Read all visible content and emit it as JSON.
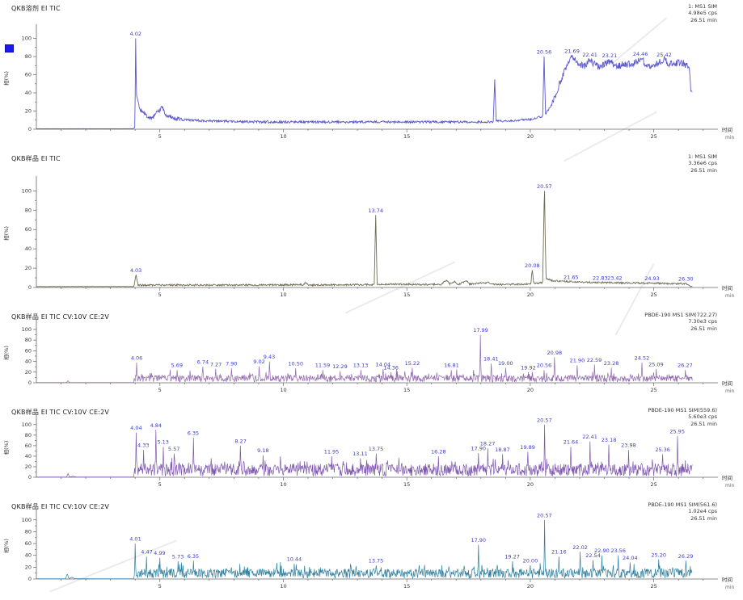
{
  "app": {
    "description_note": "Five stacked GC/MS chromatogram (TIC) traces"
  },
  "colors": {
    "peak_label": "#3c3ccd",
    "axis_line": "#666666",
    "tick_text": "#333333",
    "selection_marker": "#1a1aee",
    "trace_p1": "#5a58cb",
    "trace_p2": "#6e6e54",
    "trace_p3": "#9168ae",
    "trace_p4": "#7e57ad",
    "trace_p5": "#2f7f9d"
  },
  "axis": {
    "x_title": "时间",
    "x_unit": "min",
    "y_title": "相(%)",
    "x_ticks": [
      5,
      10,
      15,
      20,
      25
    ],
    "y_ticks": [
      0,
      20,
      40,
      60,
      80,
      100
    ]
  },
  "chart_data": [
    {
      "type": "line",
      "title": "QKB溶剂 EI TIC",
      "info": [
        "1: MS1 SIM",
        "4.98e5 cps",
        "26.51 min"
      ],
      "xlabel": "时间 (min)",
      "ylabel": "相(%)",
      "xlim": [
        0,
        27.5
      ],
      "ylim": [
        0,
        110
      ],
      "x_ticks": [
        5,
        10,
        15,
        20,
        25
      ],
      "y_ticks": [
        0,
        20,
        40,
        60,
        80,
        100
      ],
      "line_color": "#5a58cb",
      "labeled_peaks": [
        {
          "label": "4.02",
          "t": 4.02,
          "h": 100
        },
        {
          "label": "20.56",
          "t": 20.56,
          "h": 80
        },
        {
          "label": "21.69",
          "t": 21.69,
          "h": 81
        },
        {
          "label": "22.41",
          "t": 22.41,
          "h": 77
        },
        {
          "label": "23.21",
          "t": 23.21,
          "h": 76
        },
        {
          "label": "24.46",
          "t": 24.46,
          "h": 78
        },
        {
          "label": "25.42",
          "t": 25.42,
          "h": 77
        }
      ],
      "baseline": [
        [
          0,
          0.5
        ],
        [
          3.9,
          0.5
        ],
        [
          3.99,
          2
        ],
        [
          4.02,
          100
        ],
        [
          4.05,
          38
        ],
        [
          4.2,
          22
        ],
        [
          4.45,
          14
        ],
        [
          4.7,
          13
        ],
        [
          4.95,
          20
        ],
        [
          5.1,
          25
        ],
        [
          5.25,
          16
        ],
        [
          5.6,
          12
        ],
        [
          6.2,
          10
        ],
        [
          7,
          9
        ],
        [
          8,
          8.5
        ],
        [
          9,
          8
        ],
        [
          11,
          8
        ],
        [
          13,
          8
        ],
        [
          15,
          8
        ],
        [
          17,
          8
        ],
        [
          18.5,
          8
        ],
        [
          18.56,
          55
        ],
        [
          18.62,
          9
        ],
        [
          19.2,
          9
        ],
        [
          19.6,
          10
        ],
        [
          20.0,
          11
        ],
        [
          20.3,
          13
        ],
        [
          20.5,
          14
        ],
        [
          20.56,
          80
        ],
        [
          20.62,
          17
        ],
        [
          20.9,
          28
        ],
        [
          21.2,
          52
        ],
        [
          21.5,
          70
        ],
        [
          21.69,
          80
        ],
        [
          21.9,
          73
        ],
        [
          22.2,
          70
        ],
        [
          22.41,
          76
        ],
        [
          22.7,
          69
        ],
        [
          23.0,
          72
        ],
        [
          23.21,
          75
        ],
        [
          23.5,
          70
        ],
        [
          23.8,
          71
        ],
        [
          24.1,
          72
        ],
        [
          24.46,
          77
        ],
        [
          24.8,
          70
        ],
        [
          25.1,
          72
        ],
        [
          25.42,
          76
        ],
        [
          25.7,
          71
        ],
        [
          26.0,
          74
        ],
        [
          26.2,
          73
        ],
        [
          26.35,
          70
        ],
        [
          26.45,
          66
        ],
        [
          26.5,
          42
        ]
      ],
      "noise_regions": [
        [
          0,
          0.15
        ],
        [
          4.15,
          2.5
        ],
        [
          6,
          1.3
        ],
        [
          17.4,
          1.1
        ],
        [
          20.9,
          4
        ],
        [
          26.4,
          1.5
        ]
      ],
      "trace_start": 3.95
    },
    {
      "type": "line",
      "title": "QKB样品 EI TIC",
      "info": [
        "1: MS1 SIM",
        "3.36e6 cps",
        "26.51 min"
      ],
      "xlabel": "时间 (min)",
      "ylabel": "相(%)",
      "xlim": [
        0,
        27.5
      ],
      "ylim": [
        0,
        110
      ],
      "x_ticks": [
        5,
        10,
        15,
        20,
        25
      ],
      "y_ticks": [
        0,
        20,
        40,
        60,
        80,
        100
      ],
      "line_color": "#6e6e54",
      "labeled_peaks": [
        {
          "label": "4.03",
          "t": 4.03,
          "h": 13
        },
        {
          "label": "13.74",
          "t": 13.74,
          "h": 75
        },
        {
          "label": "20.08",
          "t": 20.08,
          "h": 18
        },
        {
          "label": "20.57",
          "t": 20.57,
          "h": 100
        },
        {
          "label": "21.65",
          "t": 21.65,
          "h": 6
        },
        {
          "label": "22.83",
          "t": 22.83,
          "h": 5
        },
        {
          "label": "23.42",
          "t": 23.42,
          "h": 5
        },
        {
          "label": "24.93",
          "t": 24.93,
          "h": 4.5
        },
        {
          "label": "26.30",
          "t": 26.3,
          "h": 4
        }
      ],
      "baseline": [
        [
          0,
          1
        ],
        [
          3.95,
          1
        ],
        [
          4.03,
          13
        ],
        [
          4.12,
          2.5
        ],
        [
          5,
          2.5
        ],
        [
          8,
          2.5
        ],
        [
          10.8,
          2.8
        ],
        [
          10.9,
          5
        ],
        [
          11,
          2.5
        ],
        [
          13.68,
          3
        ],
        [
          13.74,
          75
        ],
        [
          13.8,
          3.5
        ],
        [
          16.4,
          3
        ],
        [
          16.6,
          8
        ],
        [
          16.75,
          3.5
        ],
        [
          16.95,
          6
        ],
        [
          17.1,
          3
        ],
        [
          17.4,
          7
        ],
        [
          17.55,
          3.5
        ],
        [
          18.3,
          5
        ],
        [
          18.45,
          3
        ],
        [
          19.9,
          3.5
        ],
        [
          20.02,
          4
        ],
        [
          20.08,
          18
        ],
        [
          20.14,
          4
        ],
        [
          20.5,
          5
        ],
        [
          20.57,
          100
        ],
        [
          20.64,
          9
        ],
        [
          20.9,
          7
        ],
        [
          21.3,
          6.5
        ],
        [
          21.65,
          6
        ],
        [
          22.2,
          5.5
        ],
        [
          22.83,
          5
        ],
        [
          23.42,
          5
        ],
        [
          24.2,
          4.5
        ],
        [
          24.93,
          4.5
        ],
        [
          25.6,
          4
        ],
        [
          26.3,
          4
        ],
        [
          26.45,
          2
        ],
        [
          26.5,
          1
        ]
      ],
      "noise_regions": [
        [
          0,
          0.15
        ],
        [
          4.1,
          0.9
        ],
        [
          26.4,
          0.3
        ]
      ],
      "trace_start": 3.95
    },
    {
      "type": "line",
      "title": "QKB样品 EI TIC CV:10V CE:2V",
      "info": [
        "PBDE-190 MS1 SIM(722.27)",
        "7.30e3 cps",
        "26.51 min"
      ],
      "xlabel": "时间 (min)",
      "ylabel": "相(%)",
      "xlim": [
        0,
        27.5
      ],
      "ylim": [
        0,
        110
      ],
      "x_ticks": [
        5,
        10,
        15,
        20,
        25
      ],
      "y_ticks": [
        0,
        20,
        40,
        60,
        80,
        100
      ],
      "line_color": "#9168ae",
      "labeled_peaks": [
        {
          "label": "4.06",
          "t": 4.06,
          "h": 38
        },
        {
          "label": "5.69",
          "t": 5.69,
          "h": 24
        },
        {
          "label": "6.74",
          "t": 6.74,
          "h": 30
        },
        {
          "label": "7.27",
          "t": 7.27,
          "h": 26
        },
        {
          "label": "7.90",
          "t": 7.9,
          "h": 27
        },
        {
          "label": "9.02",
          "t": 9.02,
          "h": 31
        },
        {
          "label": "9.43",
          "t": 9.43,
          "h": 40
        },
        {
          "label": "10.50",
          "t": 10.5,
          "h": 27
        },
        {
          "label": "11.59",
          "t": 11.59,
          "h": 24
        },
        {
          "label": "12.29",
          "t": 12.29,
          "h": 22
        },
        {
          "label": "13.13",
          "t": 13.13,
          "h": 24
        },
        {
          "label": "14.04",
          "t": 14.04,
          "h": 26
        },
        {
          "label": "14.36",
          "t": 14.36,
          "h": 20
        },
        {
          "label": "15.22",
          "t": 15.22,
          "h": 28
        },
        {
          "label": "16.81",
          "t": 16.81,
          "h": 24
        },
        {
          "label": "17.99",
          "t": 17.99,
          "h": 90
        },
        {
          "label": "18.41",
          "t": 18.41,
          "h": 36
        },
        {
          "label": "19.00",
          "t": 19.0,
          "h": 28
        },
        {
          "label": "19.92",
          "t": 19.92,
          "h": 20
        },
        {
          "label": "20.56",
          "t": 20.56,
          "h": 24
        },
        {
          "label": "20.98",
          "t": 20.98,
          "h": 48
        },
        {
          "label": "21.90",
          "t": 21.9,
          "h": 33
        },
        {
          "label": "22.59",
          "t": 22.59,
          "h": 34
        },
        {
          "label": "23.28",
          "t": 23.28,
          "h": 28
        },
        {
          "label": "24.52",
          "t": 24.52,
          "h": 38
        },
        {
          "label": "25.09",
          "t": 25.09,
          "h": 26
        },
        {
          "label": "26.27",
          "t": 26.27,
          "h": 24
        }
      ],
      "baseline": [
        [
          0,
          0.4
        ],
        [
          1.22,
          0.4
        ],
        [
          1.28,
          4
        ],
        [
          1.34,
          0.4
        ],
        [
          3.9,
          0.4
        ],
        [
          4.0,
          0.5
        ],
        [
          26.55,
          0.5
        ]
      ],
      "noise_band": {
        "floor": 1.5,
        "band": 13,
        "spike_p": 0.1,
        "spike_h": 12
      },
      "trace_start": 3.95
    },
    {
      "type": "line",
      "title": "QKB样品 EI TIC CV:10V CE:2V",
      "info": [
        "PBDE-190 MS1 SIM(559.6)",
        "5.60e3 cps",
        "26.51 min"
      ],
      "xlabel": "时间 (min)",
      "ylabel": "相(%)",
      "xlim": [
        0,
        27.5
      ],
      "ylim": [
        0,
        110
      ],
      "x_ticks": [
        5,
        10,
        15,
        20,
        25
      ],
      "y_ticks": [
        0,
        20,
        40,
        60,
        80,
        100
      ],
      "line_color": "#7e57ad",
      "labeled_peaks": [
        {
          "label": "4.04",
          "t": 4.04,
          "h": 85
        },
        {
          "label": "4.33",
          "t": 4.33,
          "h": 52
        },
        {
          "label": "4.84",
          "t": 4.84,
          "h": 90
        },
        {
          "label": "5.13",
          "t": 5.13,
          "h": 58
        },
        {
          "label": "5.57",
          "t": 5.57,
          "h": 45
        },
        {
          "label": "6.35",
          "t": 6.35,
          "h": 75
        },
        {
          "label": "8.27",
          "t": 8.27,
          "h": 60
        },
        {
          "label": "9.18",
          "t": 9.18,
          "h": 42
        },
        {
          "label": "11.95",
          "t": 11.95,
          "h": 40
        },
        {
          "label": "13.11",
          "t": 13.11,
          "h": 36
        },
        {
          "label": "13.75",
          "t": 13.75,
          "h": 45
        },
        {
          "label": "16.28",
          "t": 16.28,
          "h": 40
        },
        {
          "label": "17.90",
          "t": 17.9,
          "h": 46
        },
        {
          "label": "18.27",
          "t": 18.27,
          "h": 55
        },
        {
          "label": "18.87",
          "t": 18.87,
          "h": 44
        },
        {
          "label": "19.89",
          "t": 19.89,
          "h": 48
        },
        {
          "label": "20.57",
          "t": 20.57,
          "h": 100
        },
        {
          "label": "21.64",
          "t": 21.64,
          "h": 58
        },
        {
          "label": "22.41",
          "t": 22.41,
          "h": 68
        },
        {
          "label": "23.18",
          "t": 23.18,
          "h": 62
        },
        {
          "label": "23.98",
          "t": 23.98,
          "h": 52
        },
        {
          "label": "25.36",
          "t": 25.36,
          "h": 44
        },
        {
          "label": "25.95",
          "t": 25.95,
          "h": 78
        }
      ],
      "baseline": [
        [
          0,
          0.4
        ],
        [
          1.22,
          0.4
        ],
        [
          1.28,
          7
        ],
        [
          1.34,
          0.5
        ],
        [
          1.5,
          2
        ],
        [
          1.6,
          0.5
        ],
        [
          3.9,
          0.4
        ],
        [
          4.0,
          0.5
        ],
        [
          26.55,
          0.5
        ]
      ],
      "noise_band": {
        "floor": 2,
        "band": 24,
        "spike_p": 0.12,
        "spike_h": 16
      },
      "trace_start": 3.95
    },
    {
      "type": "line",
      "title": "QKB样品 EI TIC CV:10V CE:2V",
      "info": [
        "PBDE-190 MS1 SIM(561.6)",
        "1.02e4 cps",
        "26.51 min"
      ],
      "xlabel": "时间 (min)",
      "ylabel": "相(%)",
      "xlim": [
        0,
        27.5
      ],
      "ylim": [
        0,
        110
      ],
      "x_ticks": [
        5,
        10,
        15,
        20,
        25
      ],
      "y_ticks": [
        0,
        20,
        40,
        60,
        80,
        100
      ],
      "line_color": "#2f7f9d",
      "labeled_peaks": [
        {
          "label": "4.01",
          "t": 4.01,
          "h": 60
        },
        {
          "label": "4.47",
          "t": 4.47,
          "h": 38
        },
        {
          "label": "4.99",
          "t": 4.99,
          "h": 36
        },
        {
          "label": "5.73",
          "t": 5.73,
          "h": 30
        },
        {
          "label": "6.35",
          "t": 6.35,
          "h": 31
        },
        {
          "label": "10.44",
          "t": 10.44,
          "h": 26
        },
        {
          "label": "13.75",
          "t": 13.75,
          "h": 23
        },
        {
          "label": "17.90",
          "t": 17.9,
          "h": 58
        },
        {
          "label": "19.27",
          "t": 19.27,
          "h": 30
        },
        {
          "label": "20.00",
          "t": 20.0,
          "h": 23
        },
        {
          "label": "20.57",
          "t": 20.57,
          "h": 100
        },
        {
          "label": "21.16",
          "t": 21.16,
          "h": 38
        },
        {
          "label": "22.02",
          "t": 22.02,
          "h": 46
        },
        {
          "label": "22.54",
          "t": 22.54,
          "h": 32
        },
        {
          "label": "22.90",
          "t": 22.9,
          "h": 40
        },
        {
          "label": "23.56",
          "t": 23.56,
          "h": 40
        },
        {
          "label": "24.04",
          "t": 24.04,
          "h": 28
        },
        {
          "label": "25.20",
          "t": 25.2,
          "h": 33
        },
        {
          "label": "26.29",
          "t": 26.29,
          "h": 31
        }
      ],
      "baseline": [
        [
          0,
          0.4
        ],
        [
          1.18,
          0.4
        ],
        [
          1.25,
          9
        ],
        [
          1.32,
          0.5
        ],
        [
          1.45,
          3
        ],
        [
          1.55,
          0.5
        ],
        [
          3.9,
          0.4
        ],
        [
          4.0,
          0.5
        ],
        [
          26.55,
          0.5
        ]
      ],
      "noise_band": {
        "floor": 1.5,
        "band": 16,
        "spike_p": 0.1,
        "spike_h": 13
      },
      "trace_start": 3.95
    }
  ]
}
